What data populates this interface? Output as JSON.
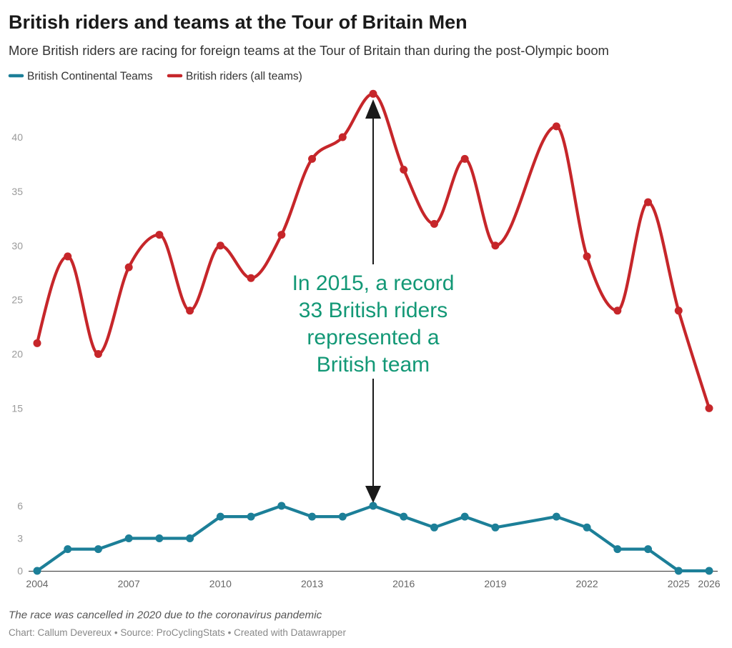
{
  "chart_data": {
    "type": "line",
    "title": "British riders and teams at the Tour of Britain Men",
    "subtitle": "More British riders are racing for foreign teams at the Tour of Britain than during the post-Olympic boom",
    "x": [
      2004,
      2005,
      2006,
      2007,
      2008,
      2009,
      2010,
      2011,
      2012,
      2013,
      2014,
      2015,
      2016,
      2017,
      2018,
      2019,
      2021,
      2022,
      2023,
      2024,
      2025,
      2026
    ],
    "series": [
      {
        "name": "British Continental Teams",
        "color": "#1c7f98",
        "interpolation": "linear",
        "values": [
          0,
          2,
          2,
          3,
          3,
          3,
          5,
          5,
          6,
          5,
          5,
          6,
          5,
          4,
          5,
          4,
          5,
          4,
          2,
          2,
          0,
          0
        ]
      },
      {
        "name": "British riders (all teams)",
        "color": "#c6262a",
        "interpolation": "curved",
        "values": [
          21,
          29,
          20,
          28,
          31,
          24,
          30,
          27,
          31,
          38,
          40,
          44,
          37,
          32,
          38,
          30,
          41,
          29,
          24,
          34,
          24,
          15
        ]
      }
    ],
    "x_ticks": [
      2004,
      2007,
      2010,
      2013,
      2016,
      2019,
      2022,
      2025,
      2026
    ],
    "y_ticks": [
      0,
      3,
      6,
      15,
      20,
      25,
      30,
      35,
      40
    ],
    "xlim": [
      2004,
      2026
    ],
    "ylim": [
      0,
      44
    ],
    "grid": false,
    "legend_position": "top-left",
    "annotation": {
      "lines": [
        "In 2015, a record",
        "33 British riders",
        "represented a",
        "British team"
      ],
      "color": "#139876"
    }
  },
  "notes": "The race was cancelled in 2020 due to the coronavirus pandemic",
  "footer": {
    "byline": "Chart: Callum Devereux",
    "separator": "•",
    "source_label": "Source:",
    "source": "ProCyclingStats",
    "credit": "Created with Datawrapper"
  }
}
